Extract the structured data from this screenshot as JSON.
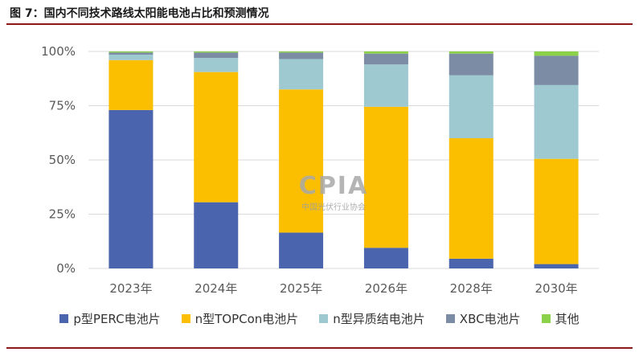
{
  "figure_title": "图 7：国内不同技术路线太阳能电池占比和预测情况",
  "watermark": {
    "logo": "CPIA",
    "name": "中国光伏行业协会"
  },
  "colors": {
    "p_perc": "#4a64ad",
    "n_topcon": "#fbbf00",
    "n_hjt": "#9fc9d0",
    "xbc": "#7b8ca4",
    "other": "#8bd149",
    "grid": "#d9d9d9",
    "axis_text": "#595959"
  },
  "chart_data": {
    "type": "bar",
    "stacked": true,
    "title": "图 7：国内不同技术路线太阳能电池占比和预测情况",
    "categories": [
      "2023年",
      "2024年",
      "2025年",
      "2026年",
      "2028年",
      "2030年"
    ],
    "y_ticks": [
      "0%",
      "25%",
      "50%",
      "75%",
      "100%"
    ],
    "ylim": [
      0,
      100
    ],
    "legend_position": "bottom",
    "series": [
      {
        "name": "p型PERC电池片",
        "color_key": "p_perc",
        "values": [
          73,
          30.5,
          16.5,
          9.5,
          4.5,
          2
        ]
      },
      {
        "name": "n型TOPCon电池片",
        "color_key": "n_topcon",
        "values": [
          23,
          60,
          66,
          65,
          55.5,
          48.5
        ]
      },
      {
        "name": "n型异质结电池片",
        "color_key": "n_hjt",
        "values": [
          2.5,
          6.5,
          14,
          19.5,
          29,
          34
        ]
      },
      {
        "name": "XBC电池片",
        "color_key": "xbc",
        "values": [
          1,
          2.5,
          3,
          5,
          10,
          13.5
        ]
      },
      {
        "name": "其他",
        "color_key": "other",
        "values": [
          0.5,
          0.5,
          0.5,
          1,
          1,
          2
        ]
      }
    ]
  }
}
